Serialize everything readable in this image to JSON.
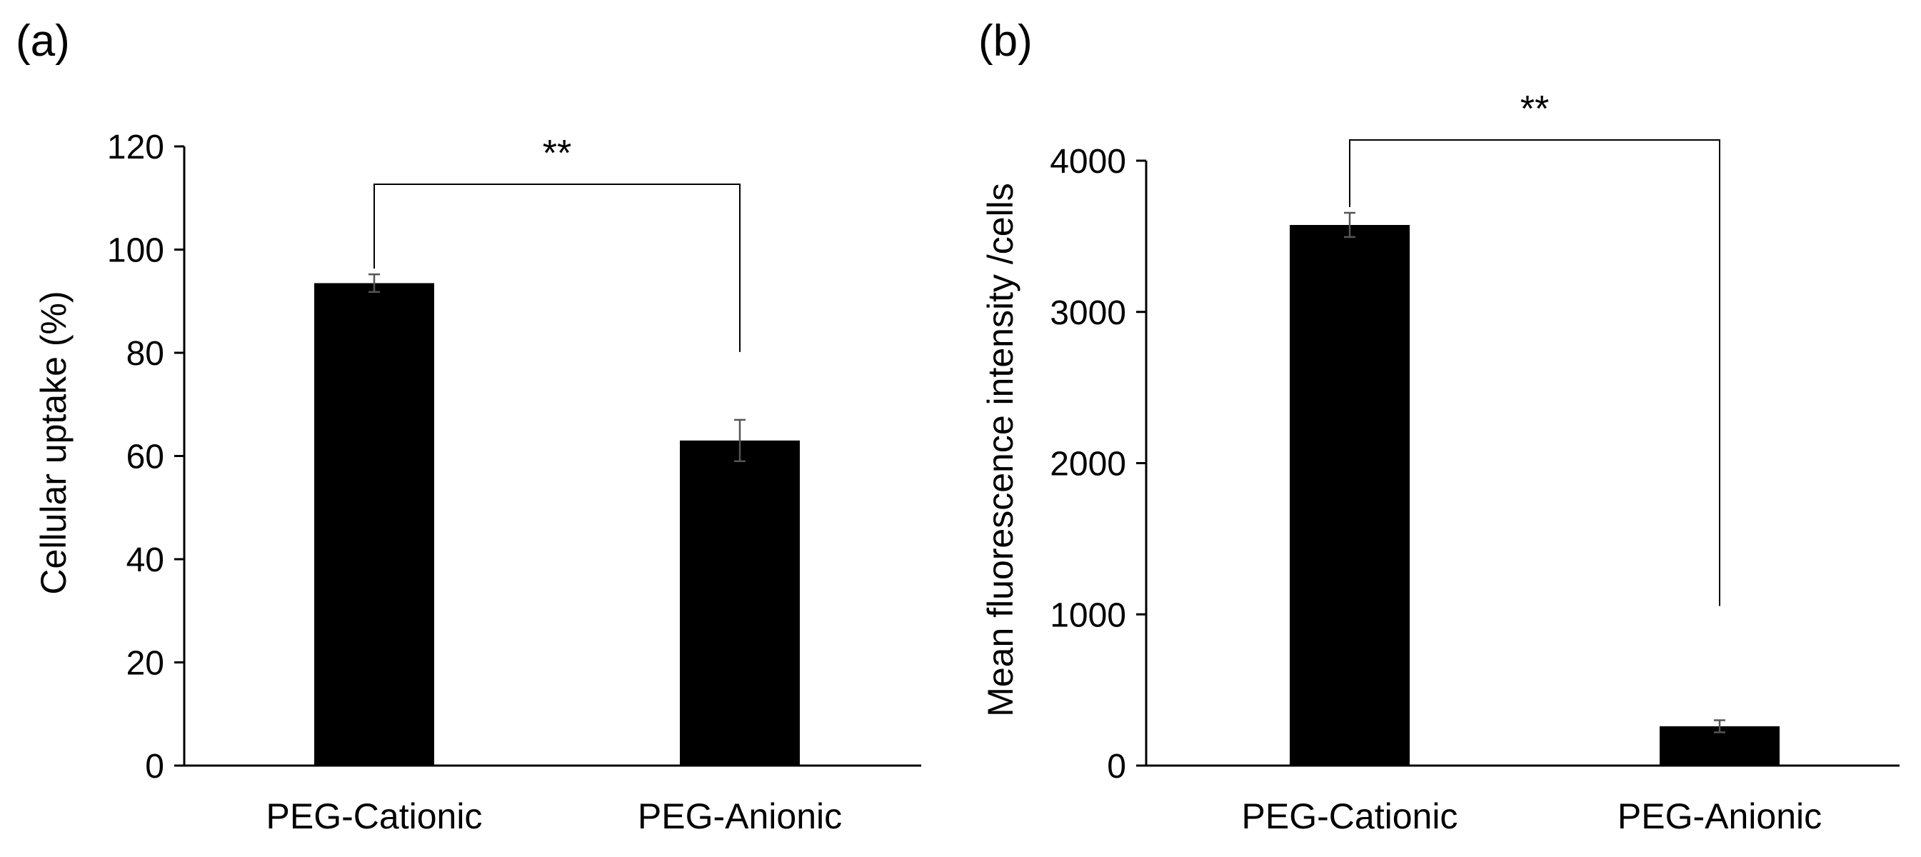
{
  "chart_data": [
    {
      "panel_label": "(a)",
      "type": "bar",
      "categories": [
        "PEG-Cationic",
        "PEG-Anionic"
      ],
      "values": [
        93.5,
        63
      ],
      "errors": [
        1.7,
        4
      ],
      "ylabel": "Cellular uptake (%)",
      "ylim": [
        0,
        120
      ],
      "yticks": [
        0,
        20,
        40,
        60,
        80,
        100,
        120
      ],
      "ytick_labels": [
        "0",
        "20",
        "40",
        "60",
        "80",
        "100",
        "120"
      ],
      "grid": false,
      "significance": {
        "label": "**",
        "between": [
          0,
          1
        ]
      }
    },
    {
      "panel_label": "(b)",
      "type": "bar",
      "categories": [
        "PEG-Cationic",
        "PEG-Anionic"
      ],
      "values": [
        3575,
        260
      ],
      "errors": [
        80,
        40
      ],
      "ylabel": "Mean fluorescence intensity /cells",
      "ylim": [
        0,
        4000
      ],
      "yticks": [
        0,
        1000,
        2000,
        3000,
        4000
      ],
      "ytick_labels": [
        "0",
        "1000",
        "2000",
        "3000",
        "4000"
      ],
      "grid": false,
      "significance": {
        "label": "**",
        "between": [
          0,
          1
        ]
      }
    }
  ],
  "colors": {
    "bar": "#000000",
    "axis": "#000000",
    "error": "#555555",
    "bracket": "#000000"
  }
}
